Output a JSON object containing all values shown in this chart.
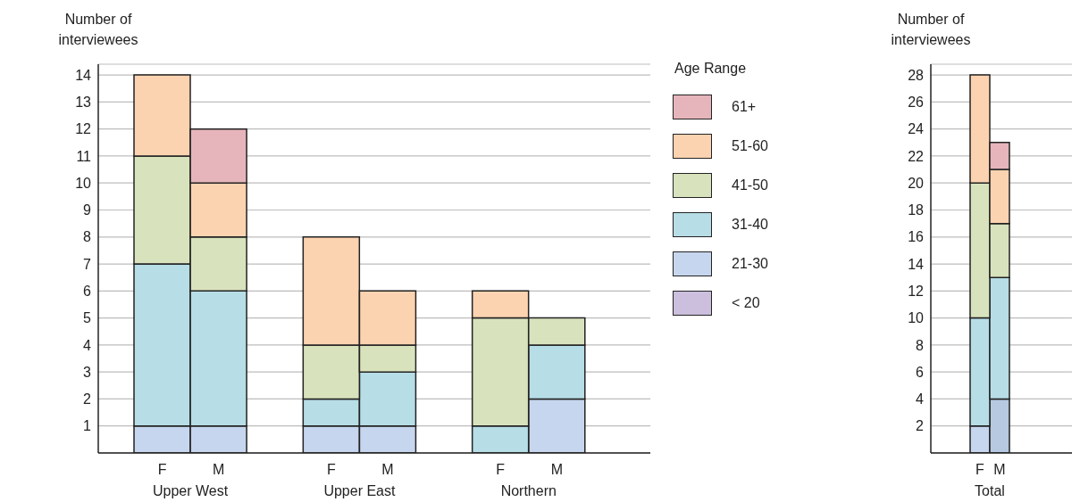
{
  "chart_data": [
    {
      "type": "bar",
      "stacked": true,
      "ylabel": "Number of interviewees",
      "legend_title": "Age Range",
      "legend": "right",
      "grid": "y",
      "categories": [
        "F",
        "M",
        null,
        "F",
        "M",
        null,
        "F",
        "M",
        null
      ],
      "annotations": [
        "Upper West",
        "Upper East",
        "Northern"
      ],
      "ylim": [
        0,
        14.4
      ],
      "yticks": [
        1,
        2,
        3,
        4,
        5,
        6,
        7,
        8,
        9,
        10,
        11,
        12,
        13,
        14
      ],
      "series": [
        {
          "name": "< 20",
          "color": "#cbbfdd",
          "values": [
            0,
            0,
            null,
            0,
            0,
            null,
            0,
            0,
            null
          ]
        },
        {
          "name": "21-30",
          "color": "#c6d6ee",
          "values": [
            1,
            1,
            null,
            1,
            1,
            null,
            0,
            2,
            null
          ]
        },
        {
          "name": "31-40",
          "color": "#b7dde6",
          "values": [
            6,
            5,
            null,
            1,
            2,
            null,
            1,
            2,
            null
          ]
        },
        {
          "name": "41-50",
          "color": "#d8e3bd",
          "values": [
            4,
            2,
            null,
            2,
            1,
            null,
            4,
            1,
            null
          ]
        },
        {
          "name": "51-60",
          "color": "#fcd3b0",
          "values": [
            3,
            2,
            null,
            4,
            2,
            null,
            1,
            0,
            null
          ]
        },
        {
          "name": "61+",
          "color": "#e6b5bb",
          "values": [
            0,
            2,
            null,
            0,
            0,
            null,
            0,
            0,
            null
          ]
        }
      ]
    },
    {
      "type": "bar",
      "stacked": true,
      "ylabel": "Number of interviewees",
      "grid": "y",
      "categories": [
        "F",
        "M"
      ],
      "annotations": [
        "Total"
      ],
      "ylim": [
        0,
        28.8
      ],
      "yticks": [
        2,
        4,
        6,
        8,
        10,
        12,
        14,
        16,
        18,
        20,
        22,
        24,
        26,
        28
      ],
      "series": [
        {
          "color": "#cbbfdd",
          "values": [
            0,
            0
          ]
        },
        {
          "color": "#c6d6ee",
          "colors": [
            "#c6d6ee",
            "#b7c9e1"
          ],
          "values": [
            2,
            4
          ]
        },
        {
          "color": "#b7dde6",
          "values": [
            8,
            9
          ]
        },
        {
          "color": "#d8e3bd",
          "values": [
            10,
            4
          ]
        },
        {
          "color": "#fcd3b0",
          "values": [
            8,
            4
          ]
        },
        {
          "color": "#e6b5bb",
          "values": [
            0,
            2
          ]
        }
      ]
    }
  ]
}
